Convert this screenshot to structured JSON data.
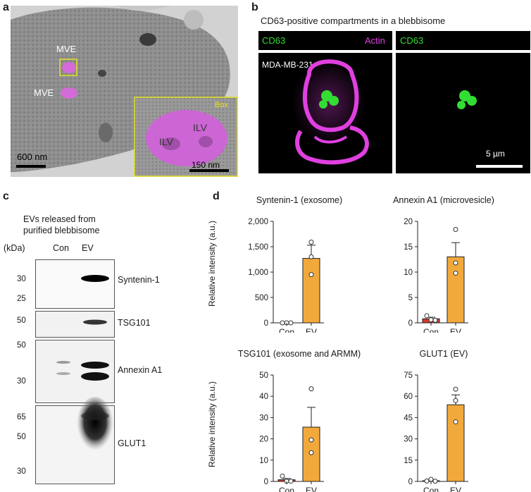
{
  "panels": {
    "a": {
      "letter": "a",
      "labels": {
        "mve_top": "MVE",
        "mve_left": "MVE",
        "box": "Box",
        "ilv_left": "ILV",
        "ilv_right": "ILV"
      },
      "scale_main": "600 nm",
      "scale_inset": "150 nm"
    },
    "b": {
      "letter": "b",
      "title": "CD63-positive compartments in a blebbisome",
      "left_header": {
        "cd63": "CD63",
        "actin": "Actin"
      },
      "right_header": {
        "cd63": "CD63"
      },
      "cell_line": "MDA-MB-231",
      "scale": "5 µm",
      "colors": {
        "cd63": "#33dd33",
        "actin": "#e040e0"
      }
    },
    "c": {
      "letter": "c",
      "title_line1": "EVs released from",
      "title_line2": "purified blebbisome",
      "kda": "(kDa)",
      "lanes": [
        "Con",
        "EV"
      ],
      "blots": [
        {
          "name": "Syntenin-1",
          "markers": [
            "30",
            "25"
          ]
        },
        {
          "name": "TSG101",
          "markers": [
            "50"
          ]
        },
        {
          "name": "Annexin A1",
          "markers": [
            "50",
            "30"
          ]
        },
        {
          "name": "GLUT1",
          "markers": [
            "65",
            "50",
            "30"
          ]
        }
      ]
    },
    "d": {
      "letter": "d",
      "ylabel": "Relative intensity (a.u.)"
    }
  },
  "chart_data": [
    {
      "type": "bar",
      "title": "Syntenin-1 (exosome)",
      "categories": [
        "Con",
        "EV"
      ],
      "values": [
        0,
        1270
      ],
      "error_upper": [
        0,
        1530
      ],
      "points": [
        [
          0,
          0,
          0
        ],
        [
          1300,
          1590,
          950
        ]
      ],
      "ylim": [
        0,
        2000
      ],
      "yticks": [
        "0",
        "500",
        "1,000",
        "1,500",
        "2,000"
      ],
      "ylabel": "Relative intensity (a.u.)",
      "bar_colors": [
        "#d23a2a",
        "#f2a93b"
      ]
    },
    {
      "type": "bar",
      "title": "Annexin A1 (microvesicle)",
      "categories": [
        "Con",
        "EV"
      ],
      "values": [
        0.8,
        13
      ],
      "error_upper": [
        1.1,
        15.8
      ],
      "points": [
        [
          1.4,
          0.6,
          0.5
        ],
        [
          18.4,
          11.8,
          9.8
        ]
      ],
      "ylim": [
        0,
        20
      ],
      "yticks": [
        "0",
        "5",
        "10",
        "15",
        "20"
      ],
      "ylabel": "",
      "bar_colors": [
        "#d23a2a",
        "#f2a93b"
      ]
    },
    {
      "type": "bar",
      "title": "TSG101 (exosome and ARMM)",
      "categories": [
        "Con",
        "EV"
      ],
      "values": [
        0.8,
        25.5
      ],
      "error_upper": [
        1.4,
        34.8
      ],
      "points": [
        [
          2.5,
          0.1,
          0.1
        ],
        [
          43.5,
          19.5,
          13.5
        ]
      ],
      "ylim": [
        0,
        50
      ],
      "yticks": [
        "0",
        "10",
        "20",
        "30",
        "40",
        "50"
      ],
      "ylabel": "Relative intensity (a.u.)",
      "bar_colors": [
        "#d23a2a",
        "#f2a93b"
      ]
    },
    {
      "type": "bar",
      "title": "GLUT1 (EV)",
      "categories": [
        "Con",
        "EV"
      ],
      "values": [
        0.5,
        54
      ],
      "error_upper": [
        0.9,
        61
      ],
      "points": [
        [
          0.3,
          1.5,
          0.2
        ],
        [
          65,
          57,
          42
        ]
      ],
      "ylim": [
        0,
        75
      ],
      "yticks": [
        "0",
        "15",
        "30",
        "45",
        "60",
        "75"
      ],
      "ylabel": "",
      "bar_colors": [
        "#d23a2a",
        "#f2a93b"
      ]
    }
  ]
}
